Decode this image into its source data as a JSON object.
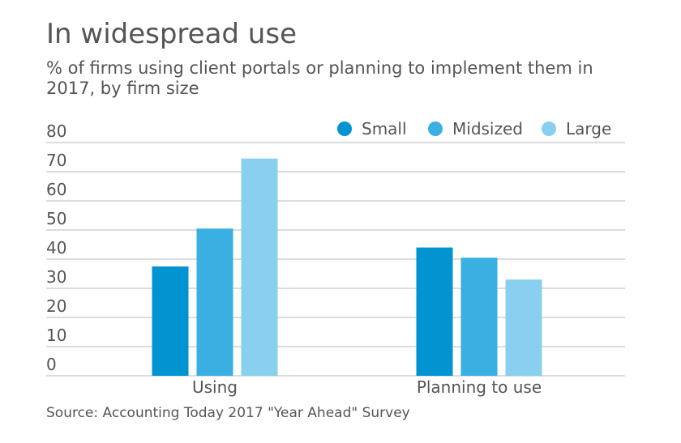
{
  "header": {
    "title": "In widespread use",
    "subtitle": "% of firms using client portals or planning to implement them in 2017, by firm size"
  },
  "footer": {
    "source": "Source: Accounting Today 2017 \"Year Ahead\" Survey"
  },
  "chart_data": {
    "type": "bar",
    "title": "In widespread use",
    "subtitle": "% of firms using client portals or planning to implement them in 2017, by firm size",
    "categories": [
      "Using",
      "Planning to use"
    ],
    "series": [
      {
        "name": "Small",
        "color": "#0293d1",
        "values": [
          37.5,
          44
        ]
      },
      {
        "name": "Midsized",
        "color": "#3aafe2",
        "values": [
          50.5,
          40.5
        ]
      },
      {
        "name": "Large",
        "color": "#88d0ee",
        "values": [
          74.5,
          33
        ]
      }
    ],
    "ylim": [
      0,
      80
    ],
    "yticks": [
      0,
      10,
      20,
      30,
      40,
      50,
      60,
      70,
      80
    ],
    "xlabel": "",
    "ylabel": "",
    "grid": true,
    "legend_position": "top-right",
    "gridline_color": "#b9b9b9"
  }
}
